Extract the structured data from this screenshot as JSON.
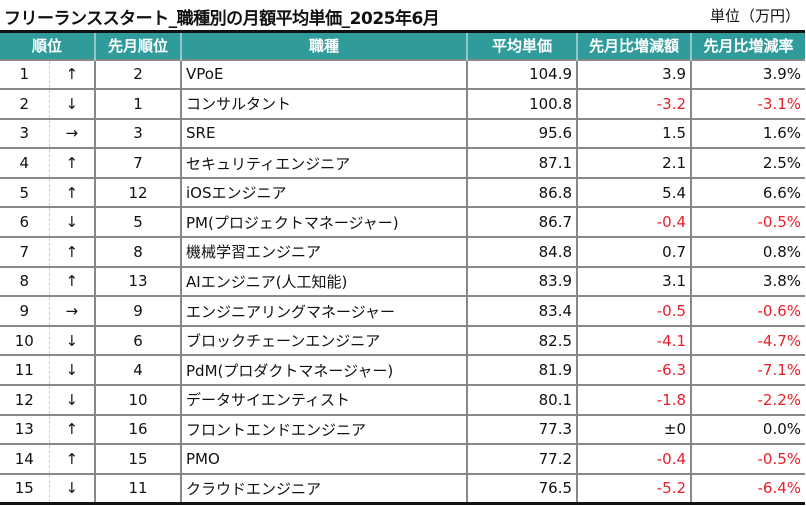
{
  "title": "フリーランススタート_職種別の月額平均単価_2025年6月",
  "unit": "単位（万円）",
  "headers": {
    "rank": "順位",
    "prev_rank": "先月順位",
    "job": "職種",
    "avg": "平均単価",
    "diff": "先月比増減額",
    "rate": "先月比増減率"
  },
  "colors": {
    "header": "#2f9b9b",
    "negative": "#e8202a"
  },
  "rows": [
    {
      "rank": "1",
      "arrow": "↑",
      "prev": "2",
      "job": "VPoE",
      "avg": "104.9",
      "diff": "3.9",
      "rate": "3.9%",
      "neg": false
    },
    {
      "rank": "2",
      "arrow": "↓",
      "prev": "1",
      "job": "コンサルタント",
      "avg": "100.8",
      "diff": "-3.2",
      "rate": "-3.1%",
      "neg": true
    },
    {
      "rank": "3",
      "arrow": "→",
      "prev": "3",
      "job": "SRE",
      "avg": "95.6",
      "diff": "1.5",
      "rate": "1.6%",
      "neg": false
    },
    {
      "rank": "4",
      "arrow": "↑",
      "prev": "7",
      "job": "セキュリティエンジニア",
      "avg": "87.1",
      "diff": "2.1",
      "rate": "2.5%",
      "neg": false
    },
    {
      "rank": "5",
      "arrow": "↑",
      "prev": "12",
      "job": "iOSエンジニア",
      "avg": "86.8",
      "diff": "5.4",
      "rate": "6.6%",
      "neg": false
    },
    {
      "rank": "6",
      "arrow": "↓",
      "prev": "5",
      "job": "PM(プロジェクトマネージャー)",
      "avg": "86.7",
      "diff": "-0.4",
      "rate": "-0.5%",
      "neg": true
    },
    {
      "rank": "7",
      "arrow": "↑",
      "prev": "8",
      "job": "機械学習エンジニア",
      "avg": "84.8",
      "diff": "0.7",
      "rate": "0.8%",
      "neg": false
    },
    {
      "rank": "8",
      "arrow": "↑",
      "prev": "13",
      "job": "AIエンジニア(人工知能)",
      "avg": "83.9",
      "diff": "3.1",
      "rate": "3.8%",
      "neg": false
    },
    {
      "rank": "9",
      "arrow": "→",
      "prev": "9",
      "job": "エンジニアリングマネージャー",
      "avg": "83.4",
      "diff": "-0.5",
      "rate": "-0.6%",
      "neg": true
    },
    {
      "rank": "10",
      "arrow": "↓",
      "prev": "6",
      "job": "ブロックチェーンエンジニア",
      "avg": "82.5",
      "diff": "-4.1",
      "rate": "-4.7%",
      "neg": true
    },
    {
      "rank": "11",
      "arrow": "↓",
      "prev": "4",
      "job": "PdM(プロダクトマネージャー)",
      "avg": "81.9",
      "diff": "-6.3",
      "rate": "-7.1%",
      "neg": true
    },
    {
      "rank": "12",
      "arrow": "↓",
      "prev": "10",
      "job": "データサイエンティスト",
      "avg": "80.1",
      "diff": "-1.8",
      "rate": "-2.2%",
      "neg": true
    },
    {
      "rank": "13",
      "arrow": "↑",
      "prev": "16",
      "job": "フロントエンドエンジニア",
      "avg": "77.3",
      "diff": "±0",
      "rate": "0.0%",
      "neg": false
    },
    {
      "rank": "14",
      "arrow": "↑",
      "prev": "15",
      "job": "PMO",
      "avg": "77.2",
      "diff": "-0.4",
      "rate": "-0.5%",
      "neg": true
    },
    {
      "rank": "15",
      "arrow": "↓",
      "prev": "11",
      "job": "クラウドエンジニア",
      "avg": "76.5",
      "diff": "-5.2",
      "rate": "-6.4%",
      "neg": true
    }
  ]
}
